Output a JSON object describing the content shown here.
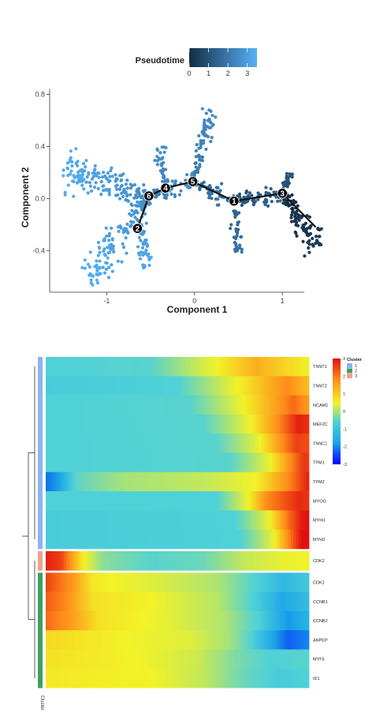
{
  "chart_data": [
    {
      "type": "scatter",
      "subtype": "pseudotime-trajectory",
      "xlabel": "Component 1",
      "ylabel": "Component 2",
      "xlim": [
        -1.65,
        1.25
      ],
      "ylim": [
        -0.72,
        0.84
      ],
      "xticks": [
        -1,
        0,
        1
      ],
      "xtick_labels": [
        "-1",
        "0",
        "1"
      ],
      "yticks": [
        -0.4,
        0.0,
        0.4,
        0.8
      ],
      "ytick_labels": [
        "-0.4",
        "0.0",
        "0.4",
        "0.8"
      ],
      "grid": false,
      "legend": {
        "title": "Pseudotime",
        "placement": "top",
        "min": 0,
        "max": 3.5,
        "ticks": [
          0,
          1,
          2,
          3
        ],
        "tick_labels": [
          "0",
          "1",
          "2",
          "3"
        ],
        "colors": [
          "#132b43",
          "#56b1f7"
        ]
      },
      "trajectory_edges": [
        [
          [
            -0.52,
            0.02
          ],
          [
            -0.33,
            0.08
          ]
        ],
        [
          [
            -0.33,
            0.08
          ],
          [
            -0.02,
            0.13
          ]
        ],
        [
          [
            -0.02,
            0.13
          ],
          [
            0.45,
            -0.02
          ]
        ],
        [
          [
            0.45,
            -0.02
          ],
          [
            1.0,
            0.04
          ]
        ],
        [
          [
            -0.52,
            0.02
          ],
          [
            -0.65,
            -0.23
          ]
        ],
        [
          [
            1.0,
            0.04
          ],
          [
            1.38,
            -0.22
          ]
        ]
      ],
      "branch_nodes": [
        {
          "label": "1",
          "x": 0.45,
          "y": -0.02
        },
        {
          "label": "2",
          "x": -0.65,
          "y": -0.23
        },
        {
          "label": "3",
          "x": 1.0,
          "y": 0.04
        },
        {
          "label": "4",
          "x": -0.33,
          "y": 0.08
        },
        {
          "label": "5",
          "x": -0.02,
          "y": 0.13
        },
        {
          "label": "6",
          "x": -0.52,
          "y": 0.02
        }
      ],
      "cell_branches": [
        {
          "from": [
            -0.52,
            0.02
          ],
          "to": [
            -1.48,
            0.22
          ],
          "spread": 0.05,
          "n": 170,
          "t0": 2.55,
          "t1": 3.4
        },
        {
          "from": [
            -0.52,
            0.02
          ],
          "to": [
            -1.18,
            -0.62
          ],
          "spread": 0.05,
          "n": 150,
          "t0": 2.6,
          "t1": 3.4
        },
        {
          "from": [
            -0.62,
            -0.2
          ],
          "to": [
            -0.55,
            -0.55
          ],
          "spread": 0.03,
          "n": 45,
          "t0": 2.8,
          "t1": 3.3
        },
        {
          "from": [
            -0.33,
            0.08
          ],
          "to": [
            -0.38,
            0.4
          ],
          "spread": 0.025,
          "n": 40,
          "t0": 2.3,
          "t1": 2.7
        },
        {
          "from": [
            -0.02,
            0.13
          ],
          "to": [
            0.19,
            0.67
          ],
          "spread": 0.03,
          "n": 75,
          "t0": 2.0,
          "t1": 2.5
        },
        {
          "from": [
            0.45,
            -0.02
          ],
          "to": [
            0.5,
            -0.42
          ],
          "spread": 0.025,
          "n": 40,
          "t0": 1.4,
          "t1": 1.9
        },
        {
          "from": [
            1.0,
            0.04
          ],
          "to": [
            1.4,
            -0.38
          ],
          "spread": 0.04,
          "n": 110,
          "t0": 0.0,
          "t1": 0.45
        },
        {
          "from": [
            1.0,
            0.04
          ],
          "to": [
            1.1,
            0.22
          ],
          "spread": 0.02,
          "n": 25,
          "t0": 0.9,
          "t1": 1.2
        },
        {
          "from": [
            -0.52,
            0.02
          ],
          "to": [
            -0.02,
            0.13
          ],
          "spread": 0.03,
          "n": 70,
          "t0": 2.2,
          "t1": 2.55
        },
        {
          "from": [
            -0.02,
            0.13
          ],
          "to": [
            0.45,
            -0.02
          ],
          "spread": 0.025,
          "n": 60,
          "t0": 1.6,
          "t1": 2.1
        },
        {
          "from": [
            0.45,
            -0.02
          ],
          "to": [
            1.0,
            0.04
          ],
          "spread": 0.03,
          "n": 80,
          "t0": 1.0,
          "t1": 1.6
        }
      ]
    },
    {
      "type": "heatmap",
      "subtype": "pseudotime-gene-expression",
      "rows": [
        "TNNT1",
        "TNNT2",
        "NCAM1",
        "MEF2C",
        "TNNC1",
        "TPM1",
        "TPM2",
        "MYOG",
        "MYH3",
        "MYH2",
        "CDK2",
        "CDK1",
        "CCNB1",
        "CCNB2",
        "ANPEP",
        "MYF5",
        "ID1"
      ],
      "row_cluster": [
        1,
        1,
        1,
        1,
        1,
        1,
        1,
        1,
        1,
        1,
        3,
        2,
        2,
        2,
        2,
        2,
        2
      ],
      "n_columns": 100,
      "value_range": [
        -3,
        3
      ],
      "colorbar": {
        "ticks": [
          3,
          2,
          1,
          0,
          -1,
          -2,
          -3
        ],
        "tick_labels": [
          "3",
          "2",
          "1",
          "0",
          "-1",
          "-2",
          "-3"
        ],
        "colors": [
          "#0000ff",
          "#1aa3e8",
          "#4fd1d8",
          "#f2f227",
          "#ff8c1a",
          "#e01010"
        ]
      },
      "cluster_legend": {
        "title": "Cluster",
        "entries": [
          {
            "label": "1",
            "color": "#8ab4f0"
          },
          {
            "label": "2",
            "color": "#3fa060"
          },
          {
            "label": "3",
            "color": "#f0a090"
          }
        ]
      },
      "cluster_annotation_label": "Cluster",
      "profiles": [
        [
          [
            0,
            -0.9
          ],
          [
            40,
            -0.8
          ],
          [
            60,
            0.5
          ],
          [
            80,
            1.6
          ],
          [
            90,
            1.2
          ],
          [
            100,
            0.8
          ]
        ],
        [
          [
            0,
            -1.0
          ],
          [
            50,
            -0.9
          ],
          [
            70,
            0.6
          ],
          [
            85,
            1.6
          ],
          [
            92,
            2.0
          ],
          [
            100,
            1.4
          ]
        ],
        [
          [
            0,
            -0.9
          ],
          [
            55,
            -0.8
          ],
          [
            75,
            0.8
          ],
          [
            88,
            1.8
          ],
          [
            94,
            2.3
          ],
          [
            100,
            1.8
          ]
        ],
        [
          [
            0,
            -0.9
          ],
          [
            60,
            -0.8
          ],
          [
            78,
            0.8
          ],
          [
            90,
            2.2
          ],
          [
            96,
            2.9
          ],
          [
            100,
            2.7
          ]
        ],
        [
          [
            0,
            -0.9
          ],
          [
            65,
            -0.8
          ],
          [
            80,
            0.6
          ],
          [
            90,
            2.0
          ],
          [
            95,
            2.6
          ],
          [
            100,
            2.5
          ]
        ],
        [
          [
            0,
            -0.9
          ],
          [
            70,
            -0.8
          ],
          [
            84,
            0.6
          ],
          [
            93,
            2.0
          ],
          [
            98,
            2.7
          ],
          [
            100,
            2.6
          ]
        ],
        [
          [
            0,
            -2.2
          ],
          [
            5,
            -1.8
          ],
          [
            12,
            -0.7
          ],
          [
            30,
            0.0
          ],
          [
            60,
            0.3
          ],
          [
            80,
            0.8
          ],
          [
            92,
            2.0
          ],
          [
            100,
            2.9
          ]
        ],
        [
          [
            0,
            -0.9
          ],
          [
            65,
            -0.9
          ],
          [
            77,
            0.8
          ],
          [
            84,
            2.0
          ],
          [
            90,
            2.4
          ],
          [
            96,
            2.8
          ],
          [
            100,
            2.7
          ]
        ],
        [
          [
            0,
            -1.0
          ],
          [
            72,
            -0.9
          ],
          [
            84,
            0.6
          ],
          [
            92,
            2.2
          ],
          [
            97,
            2.9
          ],
          [
            100,
            3.0
          ]
        ],
        [
          [
            0,
            -1.0
          ],
          [
            74,
            -0.9
          ],
          [
            86,
            0.6
          ],
          [
            93,
            2.2
          ],
          [
            97,
            3.0
          ],
          [
            100,
            3.0
          ]
        ],
        [
          [
            0,
            2.9
          ],
          [
            6,
            2.6
          ],
          [
            14,
            0.9
          ],
          [
            22,
            -0.3
          ],
          [
            40,
            -0.8
          ],
          [
            60,
            -0.6
          ],
          [
            75,
            0.3
          ],
          [
            90,
            0.7
          ],
          [
            100,
            0.8
          ]
        ],
        [
          [
            0,
            2.6
          ],
          [
            10,
            1.9
          ],
          [
            18,
            0.9
          ],
          [
            40,
            0.6
          ],
          [
            65,
            0.1
          ],
          [
            80,
            -0.9
          ],
          [
            90,
            -1.4
          ],
          [
            100,
            -1.1
          ]
        ],
        [
          [
            0,
            2.4
          ],
          [
            8,
            2.0
          ],
          [
            18,
            1.0
          ],
          [
            40,
            0.8
          ],
          [
            65,
            0.2
          ],
          [
            80,
            -1.0
          ],
          [
            90,
            -1.7
          ],
          [
            100,
            -1.3
          ]
        ],
        [
          [
            0,
            2.3
          ],
          [
            10,
            1.8
          ],
          [
            20,
            1.0
          ],
          [
            45,
            0.7
          ],
          [
            68,
            0.1
          ],
          [
            82,
            -1.0
          ],
          [
            92,
            -1.9
          ],
          [
            100,
            -1.5
          ]
        ],
        [
          [
            0,
            1.1
          ],
          [
            30,
            0.8
          ],
          [
            55,
            0.6
          ],
          [
            70,
            0.0
          ],
          [
            82,
            -1.3
          ],
          [
            92,
            -2.3
          ],
          [
            100,
            -2.0
          ]
        ],
        [
          [
            0,
            1.0
          ],
          [
            35,
            0.8
          ],
          [
            58,
            0.4
          ],
          [
            72,
            -0.4
          ],
          [
            85,
            -0.9
          ],
          [
            100,
            -0.8
          ]
        ],
        [
          [
            0,
            0.9
          ],
          [
            40,
            0.8
          ],
          [
            60,
            0.3
          ],
          [
            75,
            -0.6
          ],
          [
            88,
            -1.0
          ],
          [
            100,
            -0.9
          ]
        ]
      ]
    }
  ]
}
